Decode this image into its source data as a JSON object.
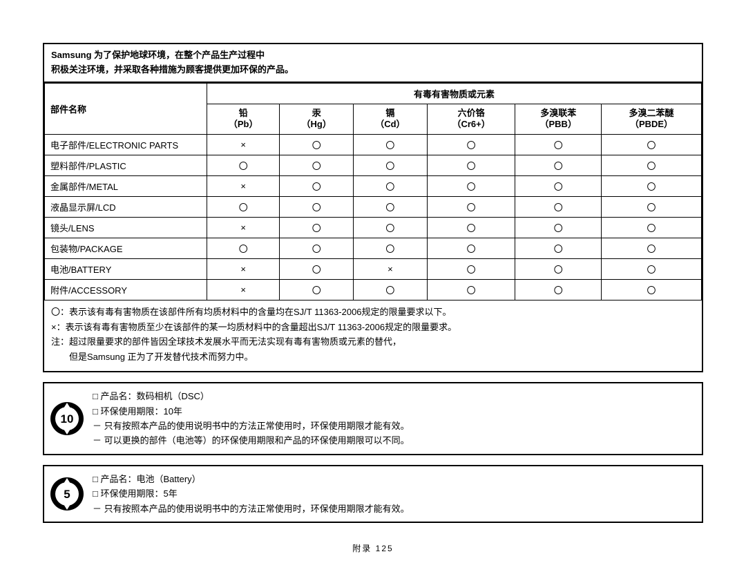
{
  "intro": {
    "line1": "Samsung 为了保护地球环境，在整个产品生产过程中",
    "line2": "积极关注环境，并采取各种措施为顾客提供更加环保的产品。"
  },
  "table": {
    "part_header": "部件名称",
    "hazard_header": "有毒有害物质或元素",
    "columns": [
      {
        "name": "铅",
        "symbol": "（Pb）"
      },
      {
        "name": "汞",
        "symbol": "（Hg）"
      },
      {
        "name": "镉",
        "symbol": "（Cd）"
      },
      {
        "name": "六价铬",
        "symbol": "（Cr6+）"
      },
      {
        "name": "多溴联苯",
        "symbol": "（PBB）"
      },
      {
        "name": "多溴二苯醚",
        "symbol": "（PBDE）"
      }
    ],
    "rows": [
      {
        "label": "电子部件/ELECTRONIC PARTS",
        "vals": [
          "×",
          "〇",
          "〇",
          "〇",
          "〇",
          "〇"
        ]
      },
      {
        "label": "塑料部件/PLASTIC",
        "vals": [
          "〇",
          "〇",
          "〇",
          "〇",
          "〇",
          "〇"
        ]
      },
      {
        "label": "金属部件/METAL",
        "vals": [
          "×",
          "〇",
          "〇",
          "〇",
          "〇",
          "〇"
        ]
      },
      {
        "label": "液晶显示屏/LCD",
        "vals": [
          "〇",
          "〇",
          "〇",
          "〇",
          "〇",
          "〇"
        ]
      },
      {
        "label": "镜头/LENS",
        "vals": [
          "×",
          "〇",
          "〇",
          "〇",
          "〇",
          "〇"
        ]
      },
      {
        "label": "包装物/PACKAGE",
        "vals": [
          "〇",
          "〇",
          "〇",
          "〇",
          "〇",
          "〇"
        ]
      },
      {
        "label": "电池/BATTERY",
        "vals": [
          "×",
          "〇",
          "×",
          "〇",
          "〇",
          "〇"
        ]
      },
      {
        "label": "附件/ACCESSORY",
        "vals": [
          "×",
          "〇",
          "〇",
          "〇",
          "〇",
          "〇"
        ]
      }
    ]
  },
  "legend": {
    "l1": "〇：表示该有毒有害物质在该部件所有均质材料中的含量均在SJ/T 11363-2006规定的限量要求以下。",
    "l2": "×：表示该有毒有害物质至少在该部件的某一均质材料中的含量超出SJ/T 11363-2006规定的限量要求。",
    "l3": "注：超过限量要求的部件皆因全球技术发展水平而无法实现有毒有害物质或元素的替代，",
    "l4": "　　但是Samsung 正为了开发替代技术而努力中。"
  },
  "box1": {
    "badge": "10",
    "t1": "□ 产品名：数码相机（DSC）",
    "t2": "□ 环保使用期限：10年",
    "t3": "－ 只有按照本产品的使用说明书中的方法正常使用时，环保使用期限才能有效。",
    "t4": "－ 可以更换的部件（电池等）的环保使用期限和产品的环保使用期限可以不同。"
  },
  "box2": {
    "badge": "5",
    "t1": "□ 产品名：电池（Battery）",
    "t2": "□ 环保使用期限：5年",
    "t3": "－ 只有按照本产品的使用说明书中的方法正常使用时，环保使用期限才能有效。"
  },
  "footer": {
    "label": "附录",
    "page": "125"
  }
}
